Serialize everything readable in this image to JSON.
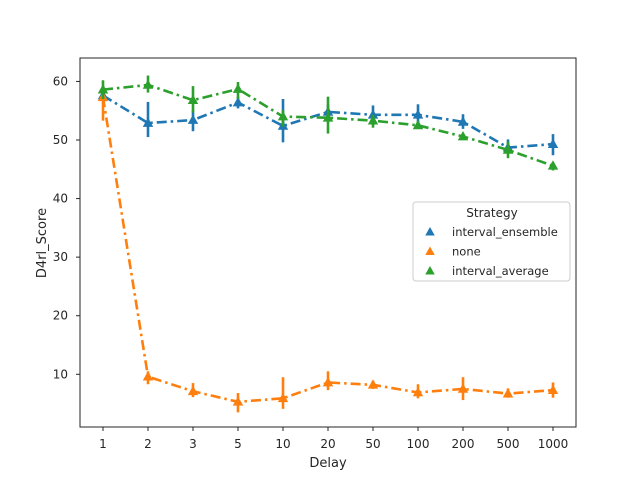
{
  "chart_data": {
    "type": "line",
    "title": "",
    "xlabel": "Delay",
    "ylabel": "D4rl_Score",
    "categories": [
      "1",
      "2",
      "3",
      "5",
      "10",
      "20",
      "50",
      "100",
      "200",
      "500",
      "1000"
    ],
    "yticks": [
      10,
      20,
      30,
      40,
      50,
      60
    ],
    "ylim": [
      1,
      64
    ],
    "grid": false,
    "legend": {
      "title": "Strategy",
      "placement": "center-right"
    },
    "series": [
      {
        "name": "interval_ensemble",
        "color": "#1f77b4",
        "values": [
          57.6,
          52.9,
          53.4,
          56.4,
          52.4,
          54.8,
          54.3,
          54.3,
          53.1,
          48.7,
          49.3
        ],
        "err_low": [
          56.8,
          50.5,
          51.5,
          55.4,
          49.6,
          53.3,
          52.6,
          52.6,
          51.9,
          47.8,
          47.4
        ],
        "err_high": [
          58.6,
          56.5,
          55.1,
          57.4,
          57.0,
          56.1,
          55.9,
          56.1,
          54.4,
          50.1,
          51.0
        ]
      },
      {
        "name": "none",
        "color": "#ff7f0e",
        "values": [
          57.3,
          9.6,
          7.1,
          5.3,
          5.9,
          8.6,
          8.2,
          6.9,
          7.5,
          6.7,
          7.3
        ],
        "err_low": [
          53.3,
          8.3,
          6.1,
          3.5,
          4.1,
          7.3,
          7.5,
          5.9,
          5.6,
          6.0,
          6.0
        ],
        "err_high": [
          59.0,
          10.5,
          8.5,
          6.8,
          9.5,
          10.5,
          8.9,
          8.3,
          9.5,
          7.6,
          8.6
        ]
      },
      {
        "name": "interval_average",
        "color": "#2ca02c",
        "values": [
          58.6,
          59.4,
          56.8,
          58.7,
          54.0,
          53.8,
          53.3,
          52.5,
          50.6,
          48.3,
          45.6
        ],
        "err_low": [
          57.0,
          58.1,
          54.7,
          57.0,
          52.3,
          51.1,
          52.1,
          51.9,
          50.0,
          46.9,
          44.8
        ],
        "err_high": [
          60.2,
          61.0,
          59.2,
          59.9,
          55.1,
          57.4,
          54.3,
          53.2,
          51.1,
          49.7,
          46.2
        ]
      }
    ]
  }
}
